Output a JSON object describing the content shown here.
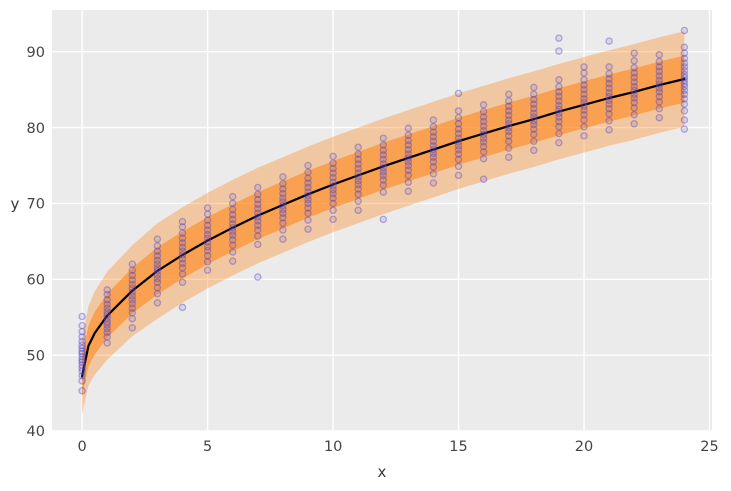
{
  "colors": {
    "figure_bg": "#ffffff",
    "plot_bg": "#ebebeb",
    "grid": "#ffffff",
    "band": "#ff7f0e",
    "mean_line": "#000000",
    "points": "#5348c8",
    "tick_text": "#454545"
  },
  "chart_data": {
    "type": "scatter",
    "title": "",
    "xlabel": "x",
    "ylabel": "y",
    "xlim": [
      -1.2,
      25.1
    ],
    "ylim": [
      40,
      95.5
    ],
    "x_ticks": [
      0,
      5,
      10,
      15,
      20,
      25
    ],
    "y_ticks": [
      40,
      50,
      60,
      70,
      80,
      90
    ],
    "grid": true,
    "legend": "none",
    "style": "ggplot-gray-background",
    "mean_curve": {
      "x": [
        0,
        0.25,
        0.5,
        1,
        2,
        3,
        4,
        5,
        6,
        7,
        8,
        9,
        10,
        11,
        12,
        13,
        14,
        15,
        16,
        17,
        18,
        19,
        20,
        21,
        22,
        23,
        24
      ],
      "mean": [
        47.2,
        51.2,
        52.9,
        55.2,
        58.5,
        61.1,
        63.2,
        65.1,
        66.8,
        68.4,
        69.8,
        71.2,
        72.5,
        73.7,
        74.9,
        76.0,
        77.1,
        78.2,
        79.2,
        80.2,
        81.1,
        82.1,
        83.0,
        83.9,
        84.7,
        85.6,
        86.4
      ]
    },
    "bands": {
      "inner": {
        "lo": [
          44.6,
          48.5,
          50.1,
          52.3,
          55.5,
          58.0,
          60.1,
          62.0,
          63.7,
          65.3,
          66.7,
          68.1,
          69.4,
          70.6,
          71.8,
          72.9,
          74.0,
          75.1,
          76.1,
          77.1,
          78.0,
          79.0,
          79.9,
          80.8,
          81.6,
          82.5,
          83.3
        ],
        "hi": [
          49.8,
          53.9,
          55.7,
          58.1,
          61.5,
          64.2,
          66.3,
          68.2,
          69.9,
          71.5,
          72.9,
          74.3,
          75.6,
          76.8,
          78.0,
          79.1,
          80.2,
          81.3,
          82.3,
          83.3,
          84.2,
          85.2,
          86.1,
          87.0,
          87.8,
          88.7,
          89.5
        ]
      },
      "outer": {
        "lo": [
          42.2,
          46.0,
          47.4,
          49.4,
          52.5,
          54.8,
          56.9,
          58.8,
          60.5,
          62.1,
          63.5,
          64.9,
          66.2,
          67.4,
          68.6,
          69.7,
          70.8,
          71.9,
          72.9,
          73.9,
          74.8,
          75.8,
          76.7,
          77.6,
          78.4,
          79.3,
          80.1
        ],
        "hi": [
          52.2,
          56.4,
          58.4,
          61.0,
          64.5,
          67.4,
          69.5,
          71.4,
          73.1,
          74.7,
          76.1,
          77.5,
          78.8,
          80.0,
          81.2,
          82.3,
          83.4,
          84.5,
          85.5,
          86.5,
          87.4,
          88.4,
          89.3,
          90.2,
          91.0,
          91.9,
          92.7
        ]
      }
    },
    "scatter": [
      {
        "x": 0,
        "y": [
          45.3,
          46.6,
          47.3,
          47.9,
          48.3,
          48.7,
          49.1,
          49.4,
          49.8,
          50.2,
          50.5,
          50.9,
          51.3,
          51.8,
          52.4,
          53.1,
          53.9,
          55.1
        ]
      },
      {
        "x": 1,
        "y": [
          51.6,
          52.4,
          53.0,
          53.5,
          54.0,
          54.4,
          54.9,
          55.3,
          55.7,
          56.2,
          56.7,
          57.3,
          58.0,
          58.6
        ]
      },
      {
        "x": 2,
        "y": [
          53.6,
          54.8,
          55.6,
          56.2,
          56.8,
          57.3,
          57.8,
          58.3,
          58.8,
          59.3,
          59.9,
          60.5,
          61.2,
          62.0
        ]
      },
      {
        "x": 3,
        "y": [
          56.9,
          58.1,
          58.9,
          59.6,
          60.1,
          60.6,
          61.1,
          61.5,
          62.0,
          62.5,
          63.1,
          63.7,
          64.4,
          65.3
        ]
      },
      {
        "x": 4,
        "y": [
          56.3,
          59.6,
          60.7,
          61.5,
          62.1,
          62.7,
          63.2,
          63.7,
          64.2,
          64.8,
          65.4,
          66.1,
          66.9,
          67.6
        ]
      },
      {
        "x": 5,
        "y": [
          61.2,
          62.3,
          63.1,
          63.8,
          64.3,
          64.9,
          65.4,
          65.9,
          66.5,
          67.1,
          67.8,
          68.6,
          69.4
        ]
      },
      {
        "x": 6,
        "y": [
          62.4,
          63.6,
          64.5,
          65.2,
          65.8,
          66.3,
          66.8,
          67.3,
          67.9,
          68.5,
          69.2,
          70.0,
          70.9
        ]
      },
      {
        "x": 7,
        "y": [
          60.3,
          64.6,
          65.7,
          66.5,
          67.1,
          67.7,
          68.2,
          68.7,
          69.3,
          69.9,
          70.5,
          71.2,
          72.1
        ]
      },
      {
        "x": 8,
        "y": [
          65.3,
          66.5,
          67.4,
          68.1,
          68.7,
          69.2,
          69.7,
          70.2,
          70.7,
          71.3,
          71.9,
          72.6,
          73.5
        ]
      },
      {
        "x": 9,
        "y": [
          66.6,
          67.8,
          68.7,
          69.4,
          70.0,
          70.5,
          71.0,
          71.5,
          72.1,
          72.7,
          73.3,
          74.1,
          75.0
        ]
      },
      {
        "x": 10,
        "y": [
          67.9,
          69.1,
          70.0,
          70.7,
          71.3,
          71.8,
          72.3,
          72.8,
          73.4,
          74.0,
          74.6,
          75.3,
          76.2
        ]
      },
      {
        "x": 11,
        "y": [
          69.1,
          70.3,
          71.2,
          71.9,
          72.5,
          73.0,
          73.5,
          74.0,
          74.6,
          75.2,
          75.8,
          76.5,
          77.4
        ]
      },
      {
        "x": 12,
        "y": [
          67.9,
          71.5,
          72.4,
          73.1,
          73.7,
          74.2,
          74.7,
          75.2,
          75.8,
          76.4,
          77.0,
          77.7,
          78.6
        ]
      },
      {
        "x": 13,
        "y": [
          71.6,
          72.8,
          73.7,
          74.4,
          75.0,
          75.5,
          76.0,
          76.5,
          77.1,
          77.7,
          78.3,
          79.0,
          79.9
        ]
      },
      {
        "x": 14,
        "y": [
          72.7,
          73.9,
          74.8,
          75.5,
          76.1,
          76.6,
          77.1,
          77.6,
          78.2,
          78.8,
          79.4,
          80.1,
          81.0
        ]
      },
      {
        "x": 15,
        "y": [
          73.7,
          74.9,
          75.8,
          76.5,
          77.1,
          77.6,
          78.1,
          78.6,
          79.2,
          79.8,
          80.5,
          81.3,
          82.2,
          84.5
        ]
      },
      {
        "x": 16,
        "y": [
          73.2,
          75.9,
          76.8,
          77.5,
          78.1,
          78.6,
          79.1,
          79.6,
          80.2,
          80.8,
          81.4,
          82.1,
          83.0
        ]
      },
      {
        "x": 17,
        "y": [
          76.1,
          77.3,
          78.2,
          78.9,
          79.5,
          80.0,
          80.5,
          81.0,
          81.6,
          82.2,
          82.8,
          83.5,
          84.4
        ]
      },
      {
        "x": 18,
        "y": [
          77.0,
          78.2,
          79.1,
          79.8,
          80.4,
          80.9,
          81.4,
          81.9,
          82.5,
          83.1,
          83.7,
          84.4,
          85.3
        ]
      },
      {
        "x": 19,
        "y": [
          78.0,
          79.2,
          80.1,
          80.8,
          81.4,
          81.9,
          82.4,
          82.9,
          83.5,
          84.1,
          84.7,
          85.4,
          86.3,
          90.1,
          91.8
        ]
      },
      {
        "x": 20,
        "y": [
          78.9,
          80.1,
          81.0,
          81.7,
          82.3,
          82.8,
          83.3,
          83.8,
          84.4,
          85.0,
          85.6,
          86.3,
          87.2,
          88.0
        ]
      },
      {
        "x": 21,
        "y": [
          79.7,
          80.9,
          81.8,
          82.5,
          83.1,
          83.6,
          84.1,
          84.6,
          85.2,
          85.8,
          86.4,
          87.1,
          88.0,
          91.4
        ]
      },
      {
        "x": 22,
        "y": [
          80.5,
          81.7,
          82.6,
          83.3,
          83.9,
          84.4,
          84.9,
          85.4,
          86.0,
          86.6,
          87.2,
          87.9,
          88.8,
          89.8
        ]
      },
      {
        "x": 23,
        "y": [
          81.3,
          82.5,
          83.4,
          84.1,
          84.7,
          85.2,
          85.7,
          86.2,
          86.8,
          87.4,
          88.0,
          88.7,
          89.6
        ]
      },
      {
        "x": 24,
        "y": [
          79.8,
          81.0,
          82.2,
          83.1,
          83.8,
          84.4,
          84.9,
          85.4,
          85.8,
          86.2,
          86.6,
          87.0,
          87.5,
          88.0,
          88.5,
          89.1,
          89.8,
          90.6,
          92.8
        ]
      }
    ]
  }
}
